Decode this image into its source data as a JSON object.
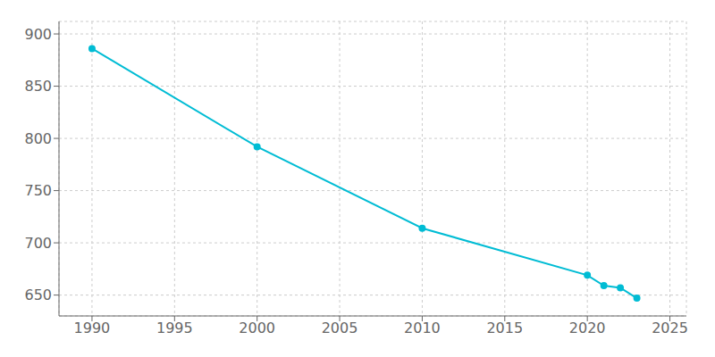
{
  "chart_data": {
    "type": "line",
    "x": [
      1990,
      2000,
      2010,
      2020,
      2021,
      2022,
      2023
    ],
    "values": [
      886,
      792,
      714,
      669,
      659,
      657,
      647
    ],
    "color": "#00bcd4",
    "marker": "o",
    "xlim": [
      1988,
      2026
    ],
    "ylim": [
      630,
      912
    ],
    "xticks": [
      1990,
      1995,
      2000,
      2005,
      2010,
      2015,
      2020,
      2025
    ],
    "yticks": [
      650,
      700,
      750,
      800,
      850,
      900
    ],
    "grid": true
  }
}
